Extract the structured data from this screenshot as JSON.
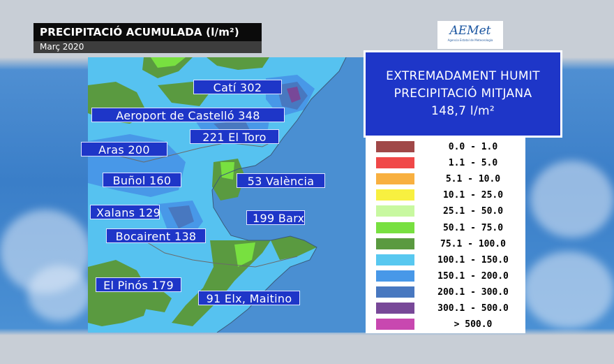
{
  "header": {
    "title": "PRECIPITACIÓ ACUMULADA (l/m²)",
    "subtitle": "Març 2020"
  },
  "logo": {
    "text": "AEMet",
    "subtext": "Agencia Estatal de Meteorología"
  },
  "summary": {
    "line1": "EXTREMADAMENT HUMIT",
    "line2": "PRECIPITACIÓ MITJANA",
    "line3": "148,7 l/m²"
  },
  "stations": [
    {
      "label": "Catí 302"
    },
    {
      "label": "Aeroport de Castelló 348"
    },
    {
      "label": "221 El Toro"
    },
    {
      "label": "Aras 200"
    },
    {
      "label": "Buñol 160"
    },
    {
      "label": "53 València"
    },
    {
      "label": "Xalans 129"
    },
    {
      "label": "199 Barx"
    },
    {
      "label": "Bocairent 138"
    },
    {
      "label": "El Pinós 179"
    },
    {
      "label": "91 Elx, Maitino"
    }
  ],
  "legend": [
    {
      "range": "0.0 - 1.0",
      "color": "#a04848"
    },
    {
      "range": "1.1 - 5.0",
      "color": "#f04848"
    },
    {
      "range": "5.1 - 10.0",
      "color": "#f8b040"
    },
    {
      "range": "10.1 - 25.0",
      "color": "#f8f040"
    },
    {
      "range": "25.1 - 50.0",
      "color": "#c8f8a0"
    },
    {
      "range": "50.1 - 75.0",
      "color": "#78e040"
    },
    {
      "range": "75.1 - 100.0",
      "color": "#5a9a40"
    },
    {
      "range": "100.1 - 150.0",
      "color": "#58c8f0"
    },
    {
      "range": "150.1 - 200.0",
      "color": "#4898e8"
    },
    {
      "range": "200.1 - 300.0",
      "color": "#4878c0"
    },
    {
      "range": "300.1 - 500.0",
      "color": "#784898"
    },
    {
      "range": "> 500.0",
      "color": "#c848b0"
    }
  ]
}
